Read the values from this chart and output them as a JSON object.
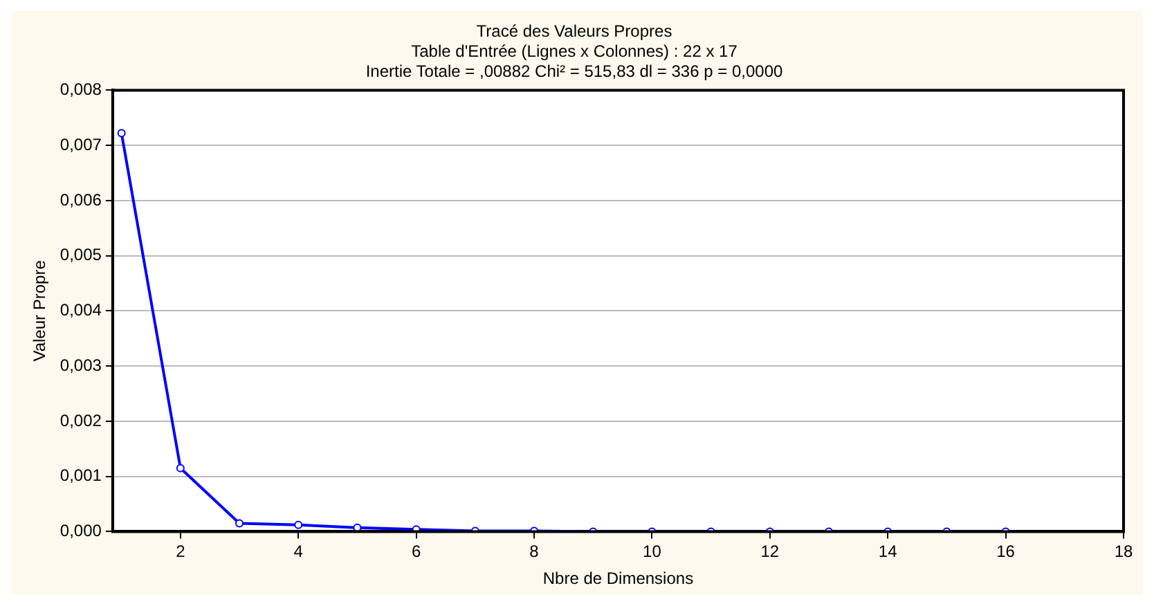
{
  "chart_data": {
    "type": "line",
    "title": "Tracé des Valeurs Propres",
    "subtitle": "Table d'Entrée (Lignes x Colonnes) : 22 x 17\nInertie Totale = ,00882 Chi² = 515,83 dl = 336 p = 0,0000",
    "xlabel": "Nbre de Dimensions",
    "ylabel": "Valeur Propre",
    "x": [
      1,
      2,
      3,
      4,
      5,
      6,
      7,
      8,
      9,
      10,
      11,
      12,
      13,
      14,
      15,
      16
    ],
    "series": [
      {
        "color": "#0000ff",
        "values": [
          0.00722,
          0.00115,
          0.00015,
          0.00012,
          7e-05,
          4e-05,
          1e-05,
          1e-05,
          0,
          0,
          0,
          0,
          0,
          0,
          0,
          0
        ]
      }
    ],
    "xlim": [
      0.85,
      18
    ],
    "xticks": [
      2,
      4,
      6,
      8,
      10,
      12,
      14,
      16,
      18
    ],
    "ylim": [
      0,
      0.008
    ],
    "yticks": [
      {
        "value": 0,
        "label": "0,000"
      },
      {
        "value": 0.001,
        "label": "0,001"
      },
      {
        "value": 0.002,
        "label": "0,002"
      },
      {
        "value": 0.003,
        "label": "0,003"
      },
      {
        "value": 0.004,
        "label": "0,004"
      },
      {
        "value": 0.005,
        "label": "0,005"
      },
      {
        "value": 0.006,
        "label": "0,006"
      },
      {
        "value": 0.007,
        "label": "0,007"
      },
      {
        "value": 0.008,
        "label": "0,008"
      }
    ],
    "grid": "y",
    "legend": false,
    "marker": "circle",
    "line_style": "solid"
  }
}
